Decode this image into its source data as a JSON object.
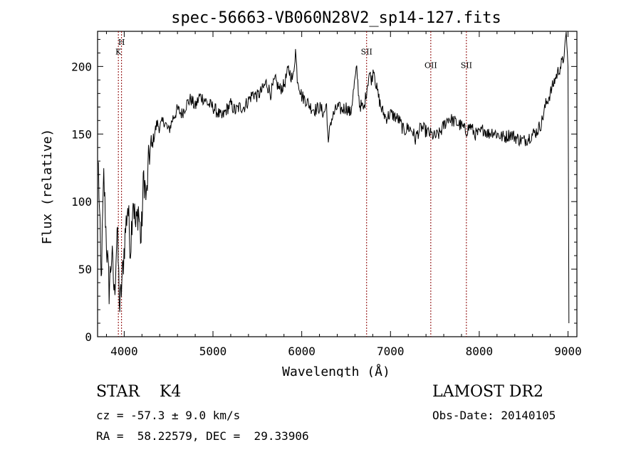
{
  "chart_data": {
    "type": "line",
    "title": "spec-56663-VB060N28V2_sp14-127.fits",
    "xlabel": "Wavelength (Å)",
    "ylabel": "Flux (relative)",
    "xlim": [
      3700,
      9100
    ],
    "ylim": [
      0,
      226
    ],
    "xticks": [
      4000,
      5000,
      6000,
      7000,
      8000,
      9000
    ],
    "yticks": [
      0,
      50,
      100,
      150,
      200
    ],
    "grid": false,
    "line_color": "#000000",
    "marker_color": "#8b0000",
    "lines": [
      {
        "label": "H",
        "wavelength": 3970,
        "label_y": 216
      },
      {
        "label": "K",
        "wavelength": 3934,
        "label_y": 209
      },
      {
        "label": "SII",
        "wavelength": 6731,
        "label_y": 209
      },
      {
        "label": "OII",
        "wavelength": 7454,
        "label_y": 199
      },
      {
        "label": "SII",
        "wavelength": 7855,
        "label_y": 199
      }
    ],
    "series": [
      {
        "x": [
          3710,
          3740,
          3770,
          3800,
          3830,
          3860,
          3890,
          3920,
          3950,
          3980,
          4010,
          4040,
          4070,
          4100,
          4130,
          4160,
          4190,
          4220,
          4250,
          4280,
          4310,
          4340,
          4370,
          4400,
          4450,
          4500,
          4550,
          4600,
          4650,
          4700,
          4750,
          4800,
          4850,
          4900,
          4950,
          5000,
          5050,
          5100,
          5150,
          5200,
          5250,
          5300,
          5350,
          5400,
          5450,
          5500,
          5550,
          5600,
          5650,
          5700,
          5750,
          5800,
          5850,
          5900,
          5930,
          5950,
          6000,
          6050,
          6100,
          6150,
          6200,
          6250,
          6280,
          6300,
          6320,
          6350,
          6400,
          6450,
          6500,
          6550,
          6600,
          6620,
          6650,
          6680,
          6700,
          6730,
          6760,
          6790,
          6810,
          6840,
          6870,
          6900,
          6950,
          7000,
          7050,
          7100,
          7150,
          7200,
          7250,
          7280,
          7300,
          7350,
          7400,
          7450,
          7500,
          7550,
          7600,
          7650,
          7700,
          7750,
          7800,
          7850,
          7900,
          7950,
          8000,
          8050,
          8100,
          8150,
          8200,
          8250,
          8300,
          8350,
          8400,
          8450,
          8500,
          8550,
          8600,
          8650,
          8700,
          8750,
          8800,
          8850,
          8900,
          8950,
          8980,
          9000,
          9010
        ],
        "y": [
          125,
          40,
          118,
          70,
          35,
          62,
          30,
          80,
          20,
          45,
          75,
          98,
          65,
          105,
          80,
          95,
          70,
          120,
          100,
          135,
          140,
          150,
          158,
          155,
          160,
          152,
          162,
          168,
          165,
          172,
          176,
          170,
          178,
          176,
          172,
          170,
          166,
          162,
          168,
          172,
          167,
          170,
          170,
          175,
          180,
          178,
          182,
          188,
          180,
          190,
          183,
          186,
          198,
          190,
          212,
          192,
          178,
          175,
          170,
          168,
          170,
          165,
          172,
          140,
          158,
          163,
          170,
          168,
          170,
          165,
          190,
          198,
          172,
          170,
          168,
          182,
          195,
          190,
          200,
          185,
          176,
          168,
          162,
          165,
          163,
          160,
          152,
          155,
          152,
          146,
          150,
          155,
          152,
          150,
          148,
          150,
          156,
          162,
          160,
          158,
          156,
          152,
          156,
          150,
          150,
          154,
          150,
          152,
          150,
          148,
          148,
          150,
          148,
          146,
          145,
          147,
          150,
          152,
          158,
          172,
          180,
          190,
          198,
          205,
          225,
          200,
          10
        ]
      }
    ],
    "footer": {
      "object": "STAR    K4",
      "cz": "cz = -57.3 ± 9.0 km/s",
      "radec": "RA =  58.22579, DEC =  29.33906",
      "survey": "LAMOST DR2",
      "obsdate": "Obs-Date: 20140105"
    }
  }
}
